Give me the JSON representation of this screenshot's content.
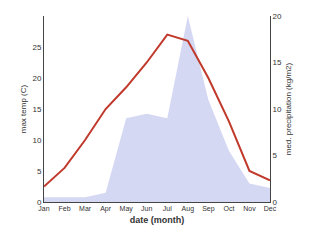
{
  "chart_data": {
    "type": "line",
    "xlabel": "date (month)",
    "ylabel": "max temp (C)",
    "y2label": "med. precipitation (kg/m2)",
    "categories": [
      "Jan",
      "Feb",
      "Mar",
      "Apr",
      "May",
      "Jun",
      "Jul",
      "Aug",
      "Sep",
      "Oct",
      "Nov",
      "Dec"
    ],
    "series": [
      {
        "type": "line",
        "color": "#c0392b",
        "values": [
          2.5,
          5.5,
          10.0,
          15.0,
          18.5,
          22.5,
          27.0,
          26.0,
          20.0,
          13.0,
          5.0,
          3.5
        ]
      },
      {
        "type": "area",
        "axis": "y2",
        "color": "#b0b8e8",
        "values": [
          0.5,
          0.5,
          0.5,
          1.0,
          9.0,
          9.5,
          9.0,
          20.0,
          11.0,
          5.5,
          2.0,
          1.5
        ]
      }
    ],
    "ylim": [
      0,
      30
    ],
    "yticks": [
      0,
      5,
      10,
      15,
      20,
      25
    ],
    "y2lim": [
      0,
      20
    ],
    "y2ticks": [
      0,
      5,
      10,
      15,
      20
    ],
    "grid": false
  }
}
